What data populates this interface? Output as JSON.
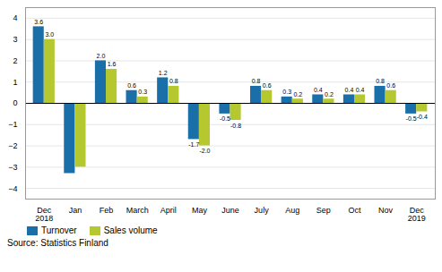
{
  "chart_data": {
    "type": "bar",
    "categories": [
      "Dec\n2018",
      "Jan",
      "Feb",
      "March",
      "April",
      "May",
      "June",
      "July",
      "Aug",
      "Sep",
      "Oct",
      "Nov",
      "Dec\n2019"
    ],
    "series": [
      {
        "name": "Turnover",
        "color": "#1a6fa8",
        "values": [
          3.6,
          -3.3,
          2.0,
          0.6,
          1.2,
          -1.7,
          -0.5,
          0.8,
          0.3,
          0.4,
          0.4,
          0.8,
          -0.5
        ],
        "value_labels": [
          "3.6",
          null,
          "2.0",
          "0.6",
          "1.2",
          "-1.7",
          "-0.5",
          "0.8",
          "0.3",
          "0.4",
          "0.4",
          "0.8",
          "-0.5"
        ]
      },
      {
        "name": "Sales volume",
        "color": "#b5c830",
        "values": [
          3.0,
          -3.0,
          1.6,
          0.3,
          0.8,
          -2.0,
          -0.8,
          0.6,
          0.2,
          0.2,
          0.4,
          0.6,
          -0.4
        ],
        "value_labels": [
          "3.0",
          null,
          "1.6",
          "0.3",
          "0.8",
          "-2.0",
          "-0.8",
          "0.6",
          "0.2",
          "0.2",
          "0.4",
          "0.6",
          "-0.4"
        ]
      }
    ],
    "ylim": [
      -4.5,
      4.5
    ],
    "yticks": [
      -4,
      -3,
      -2,
      -1,
      0,
      1,
      2,
      3,
      4
    ],
    "grid": true,
    "legend": "lower left",
    "data_labels": true,
    "annotations": [
      "Source: Statistics Finland"
    ]
  }
}
